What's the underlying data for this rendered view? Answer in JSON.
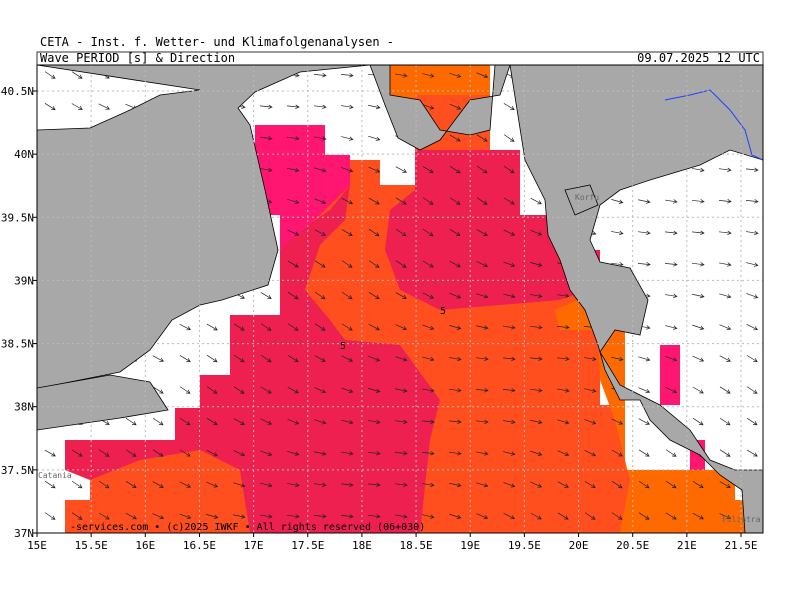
{
  "header": {
    "institute": "CETA - Inst. f. Wetter- und Klimafolgenanalysen -",
    "product": "Wave_PERIOD_[s]_&_Direction",
    "valid_time": "09.07.2025 12 UTC"
  },
  "map": {
    "lon_ticks": [
      {
        "value": 15,
        "label": "15E"
      },
      {
        "value": 15.5,
        "label": "15.5E"
      },
      {
        "value": 16,
        "label": "16E"
      },
      {
        "value": 16.5,
        "label": "16.5E"
      },
      {
        "value": 17,
        "label": "17E"
      },
      {
        "value": 17.5,
        "label": "17.5E"
      },
      {
        "value": 18,
        "label": "18E"
      },
      {
        "value": 18.5,
        "label": "18.5E"
      },
      {
        "value": 19,
        "label": "19E"
      },
      {
        "value": 19.5,
        "label": "19.5E"
      },
      {
        "value": 20,
        "label": "20E"
      },
      {
        "value": 20.5,
        "label": "20.5E"
      },
      {
        "value": 21,
        "label": "21E"
      },
      {
        "value": 21.5,
        "label": "21.5E"
      }
    ],
    "lat_ticks": [
      {
        "value": 37,
        "label": "37N"
      },
      {
        "value": 37.5,
        "label": "37.5N"
      },
      {
        "value": 38,
        "label": "38N"
      },
      {
        "value": 38.5,
        "label": "38.5N"
      },
      {
        "value": 39,
        "label": "39N"
      },
      {
        "value": 39.5,
        "label": "39.5N"
      },
      {
        "value": 40,
        "label": "40N"
      },
      {
        "value": 40.5,
        "label": "40.5N"
      }
    ],
    "contour_labels": [
      "5",
      "5"
    ],
    "places": [
      "Catania",
      "Korfu",
      "Filiatra"
    ],
    "footer": "-services.com • (c)2025 IWKF • All rights reserved (06+030)"
  }
}
